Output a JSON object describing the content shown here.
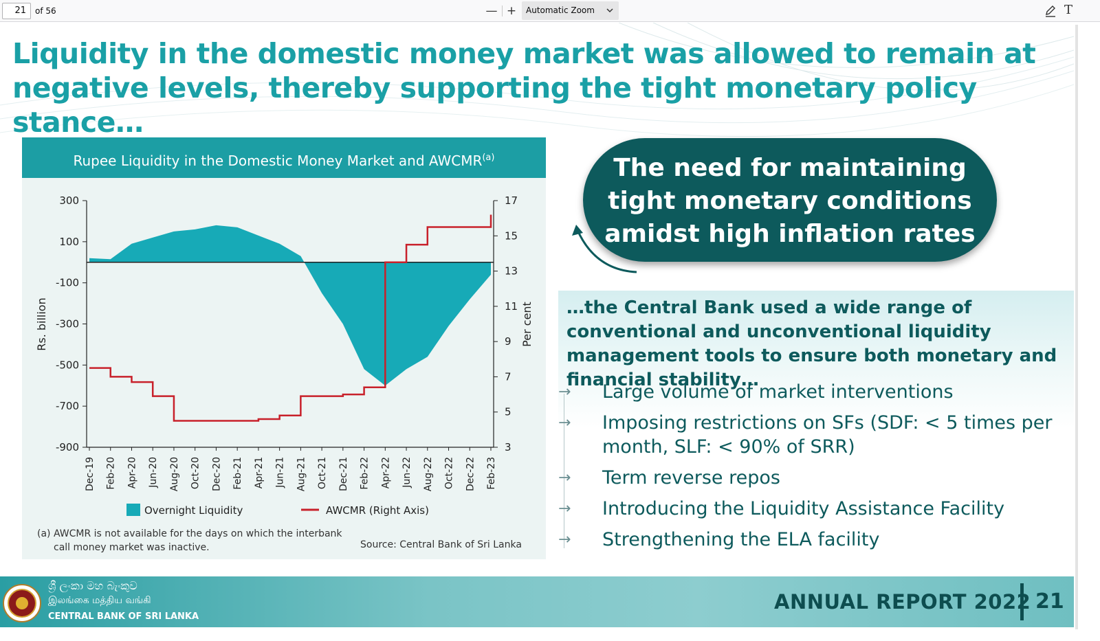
{
  "toolbar": {
    "page_number": "21",
    "page_count": "of 56",
    "zoom_out": "—",
    "zoom_in": "+",
    "zoom_level": "Automatic Zoom",
    "text_tool": "T"
  },
  "slide": {
    "headline_line1": "Liquidity in the domestic money market was allowed to remain at",
    "headline_line2": "negative levels, thereby supporting the tight monetary policy stance…",
    "callout_line1": "The need for maintaining",
    "callout_line2": "tight monetary conditions",
    "callout_line3": "amidst high inflation rates",
    "lead_text": "…the Central Bank used a wide range of conventional and unconventional liquidity management tools to ensure both monetary and financial stability…",
    "bullets": [
      "Large volume of market interventions",
      "Imposing restrictions on SFs (SDF: < 5 times per month, SLF: < 90% of SRR)",
      "Term reverse repos",
      "Introducing the Liquidity Assistance Facility",
      "Strengthening the ELA facility"
    ],
    "bullet_arrow": "→",
    "note_line1": "(a) AWCMR is not available for the days on which the interbank",
    "note_line2": "call money market was inactive.",
    "source": "Source: Central Bank of Sri Lanka"
  },
  "footer": {
    "bank_sinhala": "ශ්‍රී ලංකා මහ බැංකුව",
    "bank_tamil": "இலங்கை மத்திய வங்கி",
    "bank_english": "CENTRAL BANK OF SRI LANKA",
    "report_title": "ANNUAL REPORT 2022",
    "page": "21"
  },
  "colors": {
    "teal": "#1c9ea4",
    "dark_teal": "#0d5a5c",
    "liquidity_fill": "#17aab7",
    "awcmr_line": "#c8202a"
  },
  "chart_data": {
    "type": "area",
    "title": "Rupee Liquidity in the Domestic Money Market and AWCMR",
    "title_sup": "(a)",
    "ylabel": "Rs. billion",
    "y2label": "Per cent",
    "ylim": [
      -900,
      300
    ],
    "y2lim": [
      3,
      17
    ],
    "yticks": [
      300,
      100,
      -100,
      -300,
      -500,
      -700,
      -900
    ],
    "y2ticks": [
      17,
      15,
      13,
      11,
      9,
      7,
      5,
      3
    ],
    "categories": [
      "Dec-19",
      "Feb-20",
      "Apr-20",
      "Jun-20",
      "Aug-20",
      "Oct-20",
      "Dec-20",
      "Feb-21",
      "Apr-21",
      "Jun-21",
      "Aug-21",
      "Oct-21",
      "Dec-21",
      "Feb-22",
      "Apr-22",
      "Jun-22",
      "Aug-22",
      "Oct-22",
      "Dec-22",
      "Feb-23"
    ],
    "series": [
      {
        "name": "Overnight Liquidity",
        "axis": "left",
        "values": [
          20,
          15,
          90,
          120,
          150,
          160,
          180,
          170,
          130,
          90,
          30,
          -150,
          -300,
          -520,
          -600,
          -520,
          -460,
          -310,
          -180,
          -60
        ]
      },
      {
        "name": "AWCMR",
        "axis": "right",
        "suffix": "(Right Axis)",
        "values": [
          7.5,
          7.0,
          6.7,
          5.9,
          4.5,
          4.5,
          4.5,
          4.5,
          4.6,
          4.8,
          5.9,
          5.9,
          6.0,
          6.4,
          13.5,
          14.5,
          15.5,
          15.5,
          15.5,
          16.2
        ]
      }
    ],
    "legend": "bottom"
  }
}
